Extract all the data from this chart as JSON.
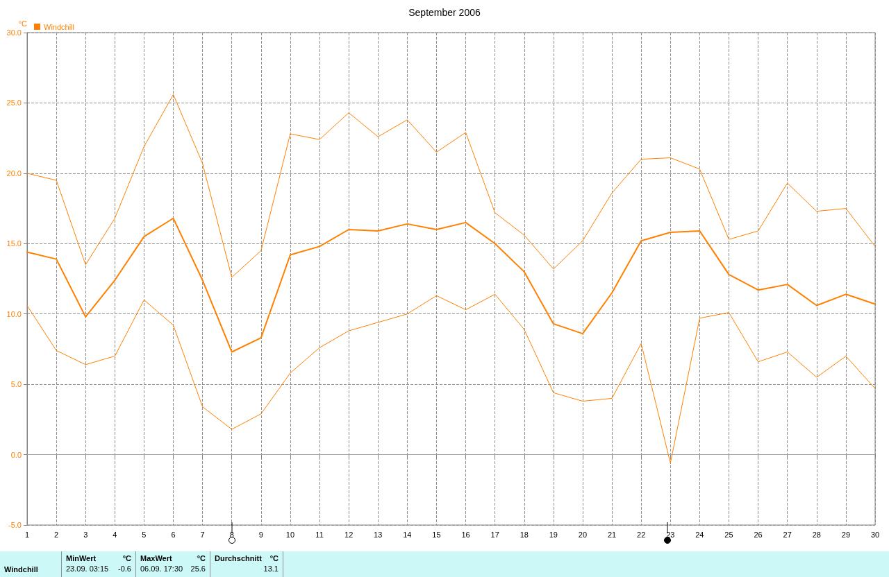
{
  "chart_data": {
    "type": "line",
    "title": "September 2006",
    "ylabel": "°C",
    "x": [
      1,
      2,
      3,
      4,
      5,
      6,
      7,
      8,
      9,
      10,
      11,
      12,
      13,
      14,
      15,
      16,
      17,
      18,
      19,
      20,
      21,
      22,
      23,
      24,
      25,
      26,
      27,
      28,
      29,
      30
    ],
    "series": [
      {
        "color": "#ff8000",
        "values": [
          20.0,
          19.5,
          13.5,
          16.8,
          21.9,
          25.6,
          20.7,
          12.6,
          14.5,
          22.8,
          22.4,
          24.3,
          22.6,
          23.8,
          21.5,
          22.9,
          17.2,
          15.6,
          13.2,
          15.2,
          18.6,
          21.0,
          21.1,
          20.3,
          15.3,
          15.9,
          19.3,
          17.3,
          17.5,
          14.8
        ]
      },
      {
        "name": "Windchill",
        "color": "#ff8000",
        "values": [
          14.4,
          13.9,
          9.8,
          12.4,
          15.5,
          16.8,
          12.4,
          7.3,
          8.3,
          14.2,
          14.8,
          16.0,
          15.9,
          16.4,
          16.0,
          16.5,
          15.0,
          13.0,
          9.3,
          8.6,
          11.5,
          15.2,
          15.8,
          15.9,
          12.8,
          11.7,
          12.1,
          10.6,
          11.4,
          10.7
        ]
      },
      {
        "color": "#ff8000",
        "values": [
          10.6,
          7.4,
          6.4,
          7.0,
          11.0,
          9.2,
          3.4,
          1.8,
          2.9,
          5.8,
          7.6,
          8.8,
          9.4,
          10.0,
          11.3,
          10.3,
          11.4,
          8.9,
          4.4,
          3.8,
          4.0,
          7.9,
          -0.6,
          9.7,
          10.1,
          6.6,
          7.3,
          5.5,
          7.0,
          4.7
        ]
      }
    ],
    "xlim": [
      1,
      30
    ],
    "xticks": [
      1,
      2,
      3,
      4,
      5,
      6,
      7,
      8,
      9,
      10,
      11,
      12,
      13,
      14,
      15,
      16,
      17,
      18,
      19,
      20,
      21,
      22,
      23,
      24,
      25,
      26,
      27,
      28,
      29,
      30
    ],
    "ylim": [
      -5,
      30
    ],
    "yticks": [
      {
        "value": -5,
        "label": "-5.0"
      },
      {
        "value": 0,
        "label": "0.0"
      },
      {
        "value": 5,
        "label": "5.0"
      },
      {
        "value": 10,
        "label": "10.0"
      },
      {
        "value": 15,
        "label": "15.0"
      },
      {
        "value": 20,
        "label": "20.0"
      },
      {
        "value": 25,
        "label": "25.0"
      },
      {
        "value": 30,
        "label": "30.0"
      }
    ],
    "ref_lines": [
      {
        "axis": "y",
        "value": 0,
        "color": "#a0a0a0"
      }
    ],
    "grid": true,
    "legend": "top left",
    "marker": "none",
    "line_style": "solid",
    "annotations": [
      "Windchill",
      "MinWert",
      "°C",
      "23.09.  03:15",
      "-0.6",
      "MaxWert",
      "°C",
      "06.09.  17:30",
      "25.6",
      "Durchschnitt",
      "°C",
      "13.1"
    ]
  }
}
